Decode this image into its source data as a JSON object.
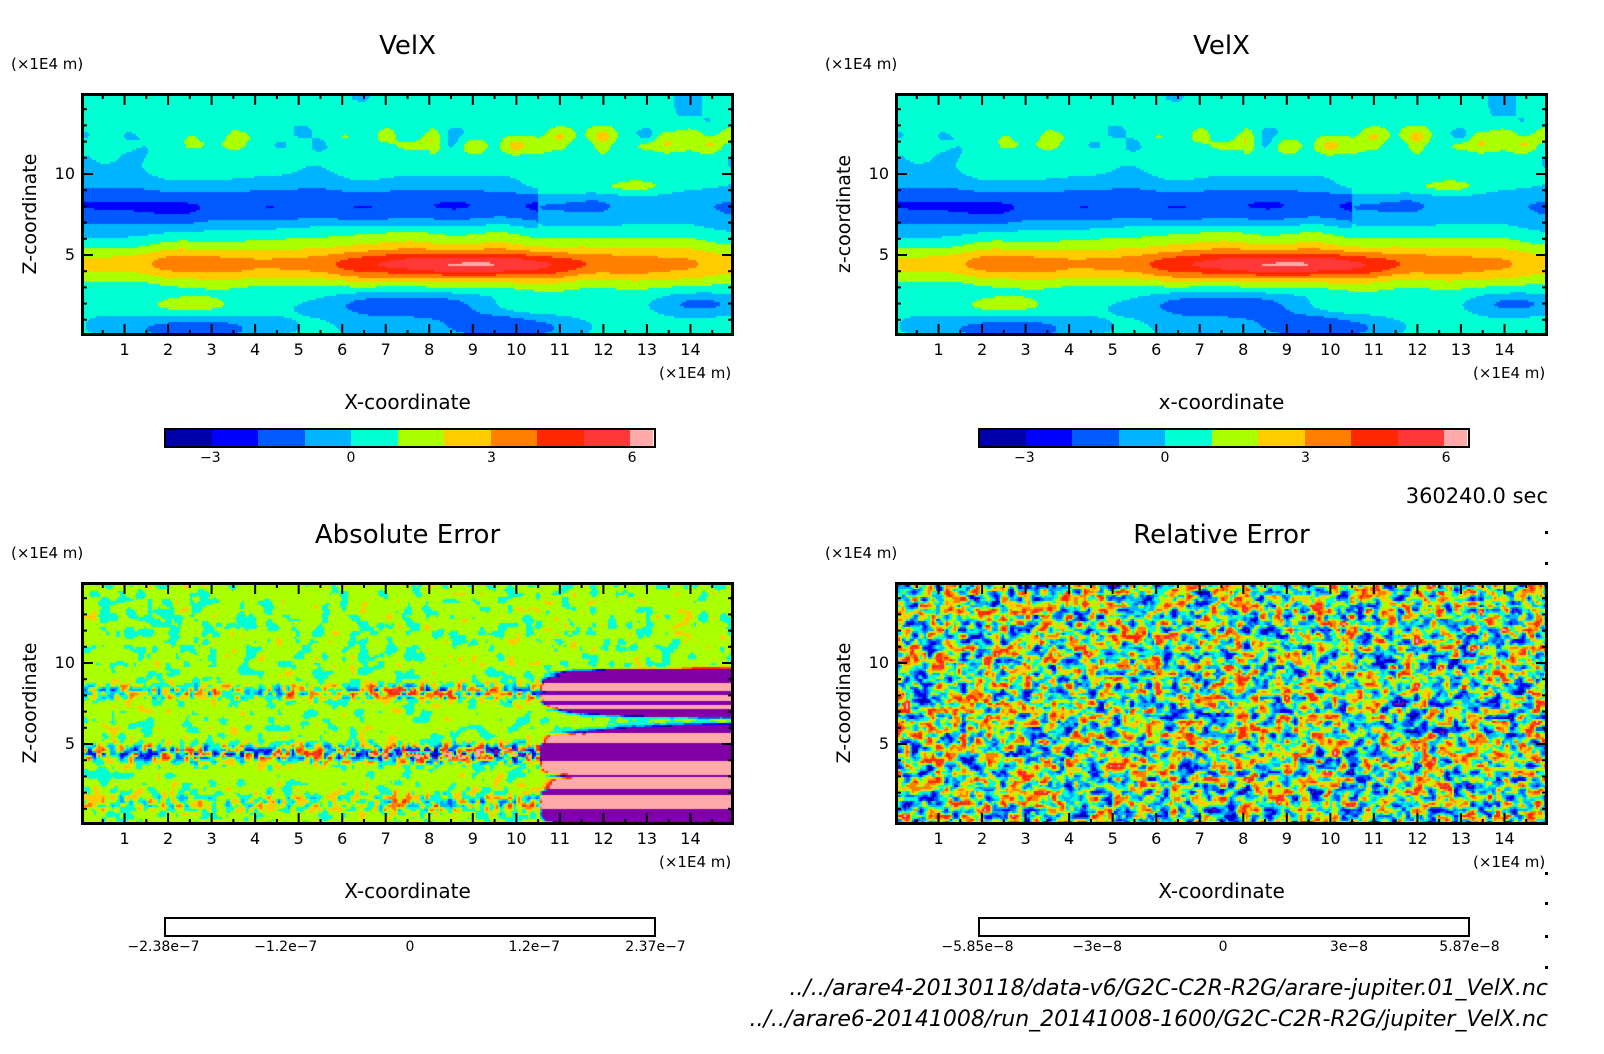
{
  "chart_data": [
    {
      "id": "velx-a",
      "type": "heatmap",
      "title": "VelX",
      "xlabel": "X-coordinate",
      "ylabel": "Z-coordinate",
      "x_unit": "(×1E4 m)",
      "y_unit": "(×1E4 m)",
      "xlim": [
        0,
        15
      ],
      "ylim": [
        0,
        15
      ],
      "x_ticks": [
        "1",
        "2",
        "3",
        "4",
        "5",
        "6",
        "7",
        "8",
        "9",
        "10",
        "11",
        "12",
        "13",
        "14"
      ],
      "y_ticks": [
        "5",
        "10"
      ],
      "field": "velx",
      "colorbar": {
        "levels": [
          -4,
          -3,
          -2,
          -1,
          0,
          1,
          2,
          3,
          4,
          5,
          6,
          6.5
        ],
        "tick_labels": [
          "-3",
          "0",
          "3",
          "6"
        ],
        "tick_values": [
          -3,
          0,
          3,
          6
        ],
        "colors": [
          "#0000aa",
          "#0000ff",
          "#005aff",
          "#00b4ff",
          "#00ffd2",
          "#aaff00",
          "#ffcc00",
          "#ff7f00",
          "#ff2800",
          "#ff3737",
          "#ffaaaa"
        ]
      }
    },
    {
      "id": "velx-b",
      "type": "heatmap",
      "title": "VelX",
      "xlabel": "x-coordinate",
      "ylabel": "z-coordinate",
      "x_unit": "(×1E4 m)",
      "y_unit": "(×1E4 m)",
      "xlim": [
        0,
        15
      ],
      "ylim": [
        0,
        15
      ],
      "x_ticks": [
        "1",
        "2",
        "3",
        "4",
        "5",
        "6",
        "7",
        "8",
        "9",
        "10",
        "11",
        "12",
        "13",
        "14"
      ],
      "y_ticks": [
        "5",
        "10"
      ],
      "field": "velx",
      "colorbar": {
        "levels": [
          -4,
          -3,
          -2,
          -1,
          0,
          1,
          2,
          3,
          4,
          5,
          6,
          6.5
        ],
        "tick_labels": [
          "-3",
          "0",
          "3",
          "6"
        ],
        "tick_values": [
          -3,
          0,
          3,
          6
        ],
        "colors": [
          "#0000aa",
          "#0000ff",
          "#005aff",
          "#00b4ff",
          "#00ffd2",
          "#aaff00",
          "#ffcc00",
          "#ff7f00",
          "#ff2800",
          "#ff3737",
          "#ffaaaa"
        ]
      }
    },
    {
      "id": "abs-error",
      "type": "heatmap",
      "title": "Absolute Error",
      "xlabel": "X-coordinate",
      "ylabel": "Z-coordinate",
      "x_unit": "(×1E4 m)",
      "y_unit": "(×1E4 m)",
      "xlim": [
        0,
        15
      ],
      "ylim": [
        0,
        15
      ],
      "x_ticks": [
        "1",
        "2",
        "3",
        "4",
        "5",
        "6",
        "7",
        "8",
        "9",
        "10",
        "11",
        "12",
        "13",
        "14"
      ],
      "y_ticks": [
        "5",
        "10"
      ],
      "field": "abs",
      "colorbar": {
        "levels": [
          -2.38e-07,
          -2e-07,
          -1.6e-07,
          -1.2e-07,
          -8e-08,
          -4e-08,
          0,
          4e-08,
          8e-08,
          1.2e-07,
          1.6e-07,
          2e-07,
          2.37e-07
        ],
        "tick_labels": [
          "-2.38e-7",
          "-1.2e-7",
          "0",
          "1.2e-7",
          "2.37e-7"
        ],
        "tick_values": [
          -2.38e-07,
          -1.2e-07,
          0,
          1.2e-07,
          2.37e-07
        ],
        "colors": [
          "#8000a8",
          "#0000aa",
          "#0000ff",
          "#005aff",
          "#00b4ff",
          "#00ffd2",
          "#aaff00",
          "#ffcc00",
          "#ff7f00",
          "#ff2800",
          "#ff3737",
          "#ffaaaa"
        ]
      }
    },
    {
      "id": "rel-error",
      "type": "heatmap",
      "title": "Relative Error",
      "xlabel": "X-coordinate",
      "ylabel": "Z-coordinate",
      "x_unit": "(×1E4 m)",
      "y_unit": "(×1E4 m)",
      "xlim": [
        0,
        15
      ],
      "ylim": [
        0,
        15
      ],
      "x_ticks": [
        "1",
        "2",
        "3",
        "4",
        "5",
        "6",
        "7",
        "8",
        "9",
        "10",
        "11",
        "12",
        "13",
        "14"
      ],
      "y_ticks": [
        "5",
        "10"
      ],
      "field": "rel",
      "colorbar": {
        "levels": [
          -5.85e-08,
          -5e-08,
          -4e-08,
          -3e-08,
          -2e-08,
          -1e-08,
          0,
          1e-08,
          2e-08,
          3e-08,
          4e-08,
          5e-08,
          5.87e-08
        ],
        "tick_labels": [
          "-5.85e-8",
          "-3e-8",
          "0",
          "3e-8",
          "5.87e-8"
        ],
        "tick_values": [
          -5.85e-08,
          -3e-08,
          0,
          3e-08,
          5.87e-08
        ],
        "colors": [
          "#8000a8",
          "#0000aa",
          "#0000ff",
          "#005aff",
          "#00b4ff",
          "#00ffd2",
          "#aaff00",
          "#ffcc00",
          "#ff7f00",
          "#ff2800",
          "#ff3737",
          "#ffaaaa"
        ]
      }
    }
  ],
  "annotations": {
    "time": "360240.0 sec",
    "file_paths": [
      "../../arare4-20130118/data-v6/G2C-C2R-R2G/arare-jupiter.01_VelX.nc",
      "../../arare6-20141008/run_20141008-1600/G2C-C2R-R2G/jupiter_VelX.nc"
    ]
  }
}
